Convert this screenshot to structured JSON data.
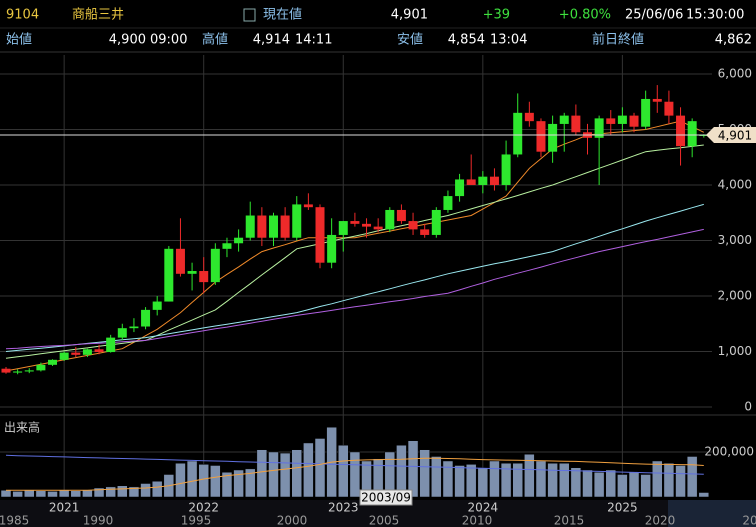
{
  "header": {
    "code": "9104",
    "name": "商船三井",
    "price_label": "現在値",
    "price": "4,901",
    "change": "+39",
    "change_pct": "+0.80%",
    "date": "25/06/06",
    "time": "15:30:00",
    "open_label": "始値",
    "open": "4,900",
    "open_time": "09:00",
    "high_label": "高値",
    "high": "4,914",
    "high_time": "14:11",
    "low_label": "安値",
    "low": "4,854",
    "low_time": "13:04",
    "prev_label": "前日終値",
    "prev": "4,862"
  },
  "chart_data": {
    "type": "candlestick",
    "categories": [
      null,
      null,
      null,
      null,
      null,
      "2021",
      null,
      null,
      null,
      null,
      null,
      null,
      null,
      null,
      null,
      null,
      null,
      "2022",
      null,
      null,
      null,
      null,
      null,
      null,
      null,
      null,
      null,
      null,
      null,
      "2023",
      null,
      null,
      null,
      null,
      null,
      null,
      null,
      null,
      null,
      null,
      null,
      "2024",
      null,
      null,
      null,
      null,
      null,
      null,
      null,
      null,
      null,
      null,
      null,
      "2025",
      null,
      null,
      null,
      null,
      null,
      null,
      null
    ],
    "open": [
      690,
      620,
      640,
      660,
      760,
      850,
      980,
      940,
      1040,
      990,
      1250,
      1420,
      1450,
      1750,
      1900,
      2850,
      2400,
      2450,
      2250,
      2850,
      2950,
      3050,
      3450,
      3050,
      3450,
      3050,
      3650,
      3600,
      2600,
      3100,
      3350,
      3300,
      3250,
      3200,
      3550,
      3350,
      3200,
      3100,
      3550,
      3800,
      4100,
      4000,
      4150,
      4000,
      4550,
      5300,
      5150,
      4600,
      5100,
      5250,
      4950,
      4850,
      5200,
      5100,
      5250,
      5050,
      5550,
      5500,
      5250,
      4700,
      4900
    ],
    "high": [
      720,
      680,
      700,
      800,
      860,
      1000,
      1080,
      1050,
      1120,
      1300,
      1500,
      1600,
      1800,
      2000,
      2900,
      3400,
      2600,
      2700,
      2950,
      3050,
      3200,
      3700,
      3600,
      3500,
      3600,
      3800,
      3850,
      3650,
      3400,
      3350,
      3500,
      3400,
      3400,
      3600,
      3650,
      3500,
      3300,
      3600,
      3900,
      4200,
      4550,
      4250,
      4300,
      4800,
      5650,
      5500,
      5200,
      5250,
      5300,
      5450,
      5100,
      5250,
      5350,
      5400,
      5300,
      5700,
      5800,
      5700,
      5400,
      5200,
      4914
    ],
    "low": [
      600,
      590,
      610,
      640,
      740,
      830,
      900,
      900,
      950,
      980,
      1200,
      1350,
      1400,
      1650,
      1900,
      2350,
      2100,
      2050,
      2200,
      2700,
      2800,
      3000,
      2900,
      2900,
      3000,
      3000,
      3550,
      2500,
      2500,
      2800,
      3250,
      3050,
      3150,
      3150,
      3300,
      3100,
      3050,
      3050,
      3500,
      3700,
      4000,
      3850,
      3900,
      3900,
      4500,
      5050,
      4500,
      4400,
      4600,
      4900,
      4550,
      4000,
      4900,
      4950,
      4950,
      5000,
      5300,
      5100,
      4350,
      4500,
      4854
    ],
    "close": [
      620,
      640,
      660,
      760,
      850,
      980,
      940,
      1040,
      990,
      1250,
      1420,
      1450,
      1750,
      1900,
      2850,
      2400,
      2450,
      2250,
      2850,
      2950,
      3050,
      3450,
      3050,
      3450,
      3050,
      3650,
      3600,
      2600,
      3100,
      3350,
      3300,
      3250,
      3200,
      3550,
      3350,
      3200,
      3100,
      3550,
      3800,
      4100,
      4000,
      4150,
      4000,
      4550,
      5300,
      5150,
      4600,
      5100,
      5250,
      4950,
      4850,
      5200,
      5100,
      5250,
      5050,
      5550,
      5500,
      5250,
      4700,
      5150,
      4901
    ],
    "up_color": "#2ee82e",
    "down_color": "#ee2a2a",
    "moving_averages": [
      {
        "color": "#f08a2a",
        "values": [
          650,
          690,
          730,
          770,
          810,
          850,
          890,
          930,
          970,
          1010,
          1050,
          1165,
          1285,
          1400,
          1550,
          1700,
          1885,
          2065,
          2250,
          2390,
          2525,
          2665,
          2800,
          2865,
          2925,
          2990,
          3050,
          3050,
          3050,
          3050,
          3050,
          3090,
          3130,
          3170,
          3210,
          3250,
          3290,
          3330,
          3370,
          3410,
          3450,
          3565,
          3685,
          3800,
          4050,
          4300,
          4475,
          4650,
          4735,
          4815,
          4900,
          4920,
          4940,
          4960,
          4980,
          5000,
          5050,
          5100,
          5150,
          5050,
          4950
        ]
      },
      {
        "color": "#b8f0a0",
        "values": [
          880,
          905,
          930,
          960,
          985,
          1015,
          1040,
          1065,
          1095,
          1120,
          1145,
          1175,
          1200,
          1290,
          1385,
          1475,
          1565,
          1660,
          1750,
          1905,
          2065,
          2220,
          2380,
          2535,
          2690,
          2850,
          2895,
          2940,
          2990,
          3035,
          3080,
          3125,
          3175,
          3220,
          3265,
          3310,
          3360,
          3405,
          3450,
          3510,
          3570,
          3630,
          3690,
          3750,
          3810,
          3875,
          3940,
          4000,
          4075,
          4150,
          4225,
          4300,
          4375,
          4450,
          4525,
          4600,
          4625,
          4650,
          4670,
          4695,
          4720
        ]
      },
      {
        "color": "#9ae8f0",
        "values": [
          1000,
          1020,
          1040,
          1060,
          1080,
          1100,
          1125,
          1145,
          1165,
          1190,
          1210,
          1230,
          1250,
          1285,
          1320,
          1355,
          1390,
          1425,
          1460,
          1490,
          1525,
          1560,
          1595,
          1630,
          1665,
          1700,
          1755,
          1810,
          1860,
          1915,
          1970,
          2025,
          2075,
          2130,
          2185,
          2240,
          2290,
          2345,
          2400,
          2445,
          2490,
          2535,
          2580,
          2620,
          2665,
          2710,
          2755,
          2800,
          2870,
          2940,
          3005,
          3075,
          3145,
          3210,
          3280,
          3350,
          3410,
          3470,
          3530,
          3590,
          3650
        ]
      },
      {
        "color": "#b060e0",
        "values": [
          1050,
          1060,
          1075,
          1090,
          1100,
          1110,
          1125,
          1140,
          1150,
          1160,
          1175,
          1190,
          1200,
          1235,
          1270,
          1305,
          1340,
          1375,
          1410,
          1440,
          1475,
          1510,
          1545,
          1580,
          1615,
          1650,
          1680,
          1710,
          1740,
          1775,
          1805,
          1835,
          1865,
          1895,
          1925,
          1955,
          1990,
          2020,
          2050,
          2110,
          2175,
          2235,
          2300,
          2355,
          2410,
          2465,
          2520,
          2580,
          2635,
          2690,
          2745,
          2800,
          2845,
          2890,
          2935,
          2980,
          3020,
          3065,
          3110,
          3155,
          3200
        ]
      }
    ],
    "ylim": [
      0,
      6342
    ],
    "yticks": [
      {
        "value": 0,
        "label": "0"
      },
      {
        "value": 1000,
        "label": "1,000"
      },
      {
        "value": 2000,
        "label": "2,000"
      },
      {
        "value": 3000,
        "label": "3,000"
      },
      {
        "value": 4000,
        "label": "4,000"
      },
      {
        "value": 5000,
        "label": "5,000"
      },
      {
        "value": 6000,
        "label": "6,000"
      }
    ],
    "price_line": {
      "value": 4901,
      "label": "4,901"
    },
    "volume": {
      "title": "出来高",
      "color": "#7d90ad",
      "values": [
        30000,
        25000,
        30000,
        28000,
        25000,
        30000,
        28000,
        30000,
        40000,
        45000,
        50000,
        45000,
        60000,
        70000,
        100000,
        150000,
        160000,
        145000,
        140000,
        110000,
        120000,
        125000,
        210000,
        200000,
        195000,
        210000,
        240000,
        260000,
        310000,
        230000,
        200000,
        160000,
        170000,
        200000,
        230000,
        250000,
        210000,
        180000,
        160000,
        140000,
        145000,
        130000,
        160000,
        150000,
        150000,
        190000,
        160000,
        150000,
        150000,
        130000,
        120000,
        110000,
        120000,
        100000,
        110000,
        100000,
        160000,
        150000,
        140000,
        180000,
        20000
      ],
      "moving_averages": [
        {
          "color": "#6070e0",
          "values": [
            185000,
            183600,
            182200,
            180800,
            179400,
            178000,
            176600,
            175200,
            173800,
            172400,
            171000,
            169600,
            168200,
            166800,
            165400,
            164000,
            162600,
            161200,
            159800,
            158400,
            157000,
            155600,
            154200,
            152800,
            151400,
            150000,
            148600,
            147200,
            145800,
            144400,
            143000,
            141600,
            140200,
            138800,
            137400,
            136000,
            134600,
            133200,
            131800,
            130400,
            129000,
            127600,
            126200,
            124800,
            123400,
            122000,
            120600,
            119200,
            117800,
            116400,
            115000,
            113600,
            112200,
            110800,
            109400,
            108000,
            106600,
            105200,
            103800,
            102400,
            101000
          ]
        },
        {
          "color": "#f0a040",
          "values": [
            30000,
            30000,
            30000,
            30000,
            30000,
            30000,
            30000,
            30000,
            32000,
            34000,
            36000,
            38000,
            40000,
            44000,
            50000,
            60000,
            70000,
            80000,
            88000,
            95000,
            100000,
            105000,
            112000,
            118000,
            124000,
            130000,
            137000,
            145000,
            155000,
            160000,
            163000,
            165000,
            166000,
            167000,
            168000,
            170000,
            172000,
            172000,
            171000,
            170000,
            168000,
            166000,
            165000,
            164000,
            163000,
            162000,
            161000,
            160000,
            159000,
            158000,
            156000,
            154000,
            152000,
            150000,
            148000,
            146000,
            145000,
            145000,
            144000,
            143000,
            140000
          ]
        }
      ],
      "ylim": [
        0,
        342000
      ],
      "yticks": [
        {
          "value": 200000,
          "label": "200,000"
        }
      ]
    },
    "navigator": {
      "labels": [
        "1985",
        "1990",
        "1995",
        "2000",
        "2005",
        "2010",
        "2015",
        "2020",
        "20"
      ],
      "tooltip": "2003/09"
    }
  }
}
